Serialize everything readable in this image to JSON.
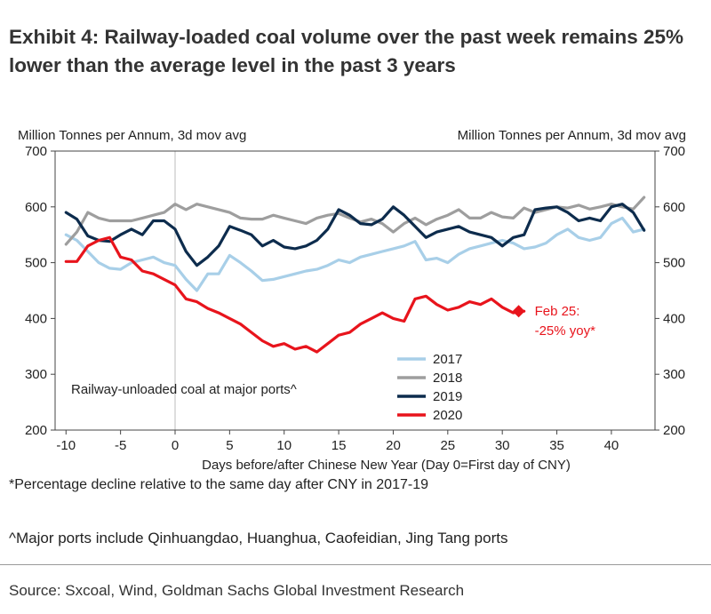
{
  "title": "Exhibit 4: Railway-loaded coal volume over the past week remains 25% lower than the average level in the past 3 years",
  "footnote_pct": "*Percentage decline relative to the same day after CNY in 2017-19",
  "footnote_ports": "^Major ports include Qinhuangdao, Huanghua, Caofeidian, Jing Tang ports",
  "source": "Source: Sxcoal, Wind, Goldman Sachs Global Investment Research",
  "chart_data": {
    "type": "line",
    "xlabel": "Days before/after Chinese New Year (Day 0=First day of CNY)",
    "ylabel_left": "Million Tonnes per Annum, 3d mov avg",
    "ylabel_right": "Million Tonnes per Annum, 3d mov avg",
    "xlim": [
      -11,
      44
    ],
    "ylim": [
      200,
      700
    ],
    "xticks": [
      -10,
      -5,
      0,
      5,
      10,
      15,
      20,
      25,
      30,
      35,
      40
    ],
    "yticks": [
      200,
      300,
      400,
      500,
      600,
      700
    ],
    "inner_label": "Railway-unloaded coal at major ports^",
    "annotation": {
      "line1": "Feb 25:",
      "line2": "-25% yoy*",
      "x": 31.5,
      "y": 413,
      "color": "#e8141c"
    },
    "series": [
      {
        "name": "2017",
        "color": "#a8cfe8",
        "x": [
          -10,
          -9,
          -8,
          -7,
          -6,
          -5,
          -4,
          -3,
          -2,
          -1,
          0,
          1,
          2,
          3,
          4,
          5,
          6,
          7,
          8,
          9,
          10,
          11,
          12,
          13,
          14,
          15,
          16,
          17,
          18,
          19,
          20,
          21,
          22,
          23,
          24,
          25,
          26,
          27,
          28,
          29,
          30,
          31,
          32,
          33,
          34,
          35,
          36,
          37,
          38,
          39,
          40,
          41,
          42,
          43
        ],
        "values": [
          550,
          540,
          520,
          500,
          490,
          488,
          500,
          505,
          510,
          500,
          495,
          470,
          450,
          480,
          480,
          513,
          500,
          485,
          468,
          470,
          475,
          480,
          485,
          488,
          495,
          505,
          500,
          510,
          515,
          520,
          525,
          530,
          538,
          505,
          508,
          500,
          515,
          525,
          530,
          535,
          540,
          535,
          525,
          528,
          535,
          550,
          560,
          545,
          540,
          545,
          570,
          580,
          555,
          560
        ]
      },
      {
        "name": "2018",
        "color": "#9e9e9e",
        "x": [
          -10,
          -9,
          -8,
          -7,
          -6,
          -5,
          -4,
          -3,
          -2,
          -1,
          0,
          1,
          2,
          3,
          4,
          5,
          6,
          7,
          8,
          9,
          10,
          11,
          12,
          13,
          14,
          15,
          16,
          17,
          18,
          19,
          20,
          21,
          22,
          23,
          24,
          25,
          26,
          27,
          28,
          29,
          30,
          31,
          32,
          33,
          34,
          35,
          36,
          37,
          38,
          39,
          40,
          41,
          42,
          43
        ],
        "values": [
          533,
          555,
          590,
          580,
          575,
          575,
          575,
          580,
          585,
          590,
          605,
          595,
          605,
          600,
          595,
          590,
          580,
          578,
          578,
          585,
          580,
          575,
          570,
          580,
          585,
          588,
          580,
          573,
          578,
          570,
          555,
          570,
          580,
          568,
          578,
          585,
          595,
          580,
          580,
          590,
          582,
          580,
          598,
          590,
          595,
          600,
          598,
          603,
          596,
          600,
          605,
          600,
          596,
          617
        ]
      },
      {
        "name": "2019",
        "color": "#0d2c4d",
        "x": [
          -10,
          -9,
          -8,
          -7,
          -6,
          -5,
          -4,
          -3,
          -2,
          -1,
          0,
          1,
          2,
          3,
          4,
          5,
          6,
          7,
          8,
          9,
          10,
          11,
          12,
          13,
          14,
          15,
          16,
          17,
          18,
          19,
          20,
          21,
          22,
          23,
          24,
          25,
          26,
          27,
          28,
          29,
          30,
          31,
          32,
          33,
          34,
          35,
          36,
          37,
          38,
          39,
          40,
          41,
          42,
          43
        ],
        "values": [
          590,
          578,
          548,
          540,
          538,
          550,
          560,
          550,
          575,
          575,
          560,
          520,
          495,
          510,
          530,
          565,
          558,
          550,
          530,
          540,
          528,
          525,
          530,
          540,
          560,
          595,
          585,
          570,
          568,
          578,
          600,
          585,
          565,
          545,
          555,
          560,
          565,
          555,
          550,
          545,
          530,
          545,
          550,
          595,
          598,
          600,
          590,
          575,
          580,
          575,
          600,
          605,
          590,
          558
        ]
      },
      {
        "name": "2020",
        "color": "#e8141c",
        "x": [
          -10,
          -9,
          -8,
          -7,
          -6,
          -5,
          -4,
          -3,
          -2,
          -1,
          0,
          1,
          2,
          3,
          4,
          5,
          6,
          7,
          8,
          9,
          10,
          11,
          12,
          13,
          14,
          15,
          16,
          17,
          18,
          19,
          20,
          21,
          22,
          23,
          24,
          25,
          26,
          27,
          28,
          29,
          30,
          31,
          32
        ],
        "values": [
          502,
          502,
          530,
          540,
          545,
          510,
          505,
          485,
          480,
          470,
          460,
          435,
          430,
          418,
          410,
          400,
          390,
          375,
          360,
          350,
          355,
          345,
          350,
          340,
          355,
          370,
          375,
          390,
          400,
          410,
          400,
          395,
          435,
          440,
          425,
          415,
          420,
          430,
          425,
          435,
          420,
          410,
          413
        ]
      }
    ]
  }
}
